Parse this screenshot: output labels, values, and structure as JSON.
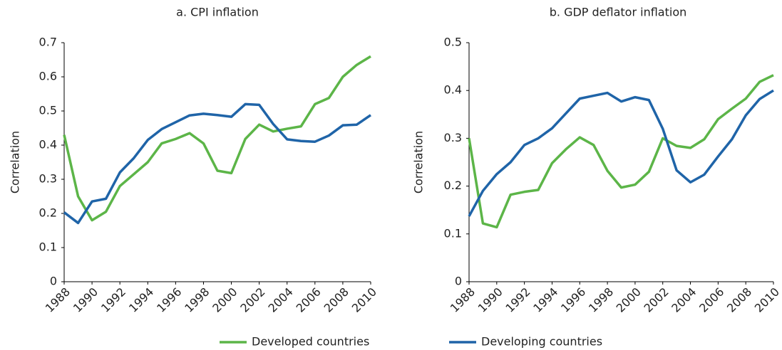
{
  "chart_data": [
    {
      "type": "line",
      "title": "a. CPI inflation",
      "y_label": "Correlation",
      "x": [
        1988,
        1989,
        1990,
        1991,
        1992,
        1993,
        1994,
        1995,
        1996,
        1997,
        1998,
        1999,
        2000,
        2001,
        2002,
        2003,
        2004,
        2005,
        2006,
        2007,
        2008,
        2009,
        2010
      ],
      "xlim": [
        1988,
        2010
      ],
      "xticks": [
        1988,
        1990,
        1992,
        1994,
        1996,
        1998,
        2000,
        2002,
        2004,
        2006,
        2008,
        2010
      ],
      "ylim": [
        0,
        0.7
      ],
      "yticks": [
        0,
        0.1,
        0.2,
        0.3,
        0.4,
        0.5,
        0.6,
        0.7
      ],
      "series": [
        {
          "name": "Developed countries",
          "color": "#5cb548",
          "values": [
            0.43,
            0.25,
            0.18,
            0.205,
            0.28,
            0.315,
            0.35,
            0.405,
            0.418,
            0.435,
            0.405,
            0.325,
            0.318,
            0.418,
            0.46,
            0.44,
            0.448,
            0.455,
            0.52,
            0.538,
            0.6,
            0.635,
            0.66
          ]
        },
        {
          "name": "Developing countries",
          "color": "#1f64a8",
          "values": [
            0.203,
            0.172,
            0.235,
            0.243,
            0.32,
            0.362,
            0.415,
            0.447,
            0.467,
            0.487,
            0.492,
            0.488,
            0.483,
            0.52,
            0.518,
            0.462,
            0.417,
            0.412,
            0.41,
            0.428,
            0.458,
            0.46,
            0.488
          ]
        }
      ]
    },
    {
      "type": "line",
      "title": "b. GDP deflator inflation",
      "y_label": "Correlation",
      "x": [
        1988,
        1989,
        1990,
        1991,
        1992,
        1993,
        1994,
        1995,
        1996,
        1997,
        1998,
        1999,
        2000,
        2001,
        2002,
        2003,
        2004,
        2005,
        2006,
        2007,
        2008,
        2009,
        2010
      ],
      "xlim": [
        1988,
        2010
      ],
      "xticks": [
        1988,
        1990,
        1992,
        1994,
        1996,
        1998,
        2000,
        2002,
        2004,
        2006,
        2008,
        2010
      ],
      "ylim": [
        0,
        0.5
      ],
      "yticks": [
        0,
        0.1,
        0.2,
        0.3,
        0.4,
        0.5
      ],
      "series": [
        {
          "color": "#5cb548",
          "values": [
            0.3,
            0.122,
            0.114,
            0.182,
            0.188,
            0.192,
            0.248,
            0.277,
            0.302,
            0.286,
            0.232,
            0.197,
            0.203,
            0.23,
            0.3,
            0.284,
            0.28,
            0.298,
            0.34,
            0.362,
            0.383,
            0.418,
            0.432
          ]
        },
        {
          "color": "#1f64a8",
          "values": [
            0.137,
            0.19,
            0.225,
            0.25,
            0.286,
            0.3,
            0.321,
            0.352,
            0.383,
            0.389,
            0.395,
            0.377,
            0.386,
            0.38,
            0.32,
            0.233,
            0.208,
            0.224,
            0.262,
            0.298,
            0.348,
            0.382,
            0.4
          ]
        }
      ]
    }
  ]
}
